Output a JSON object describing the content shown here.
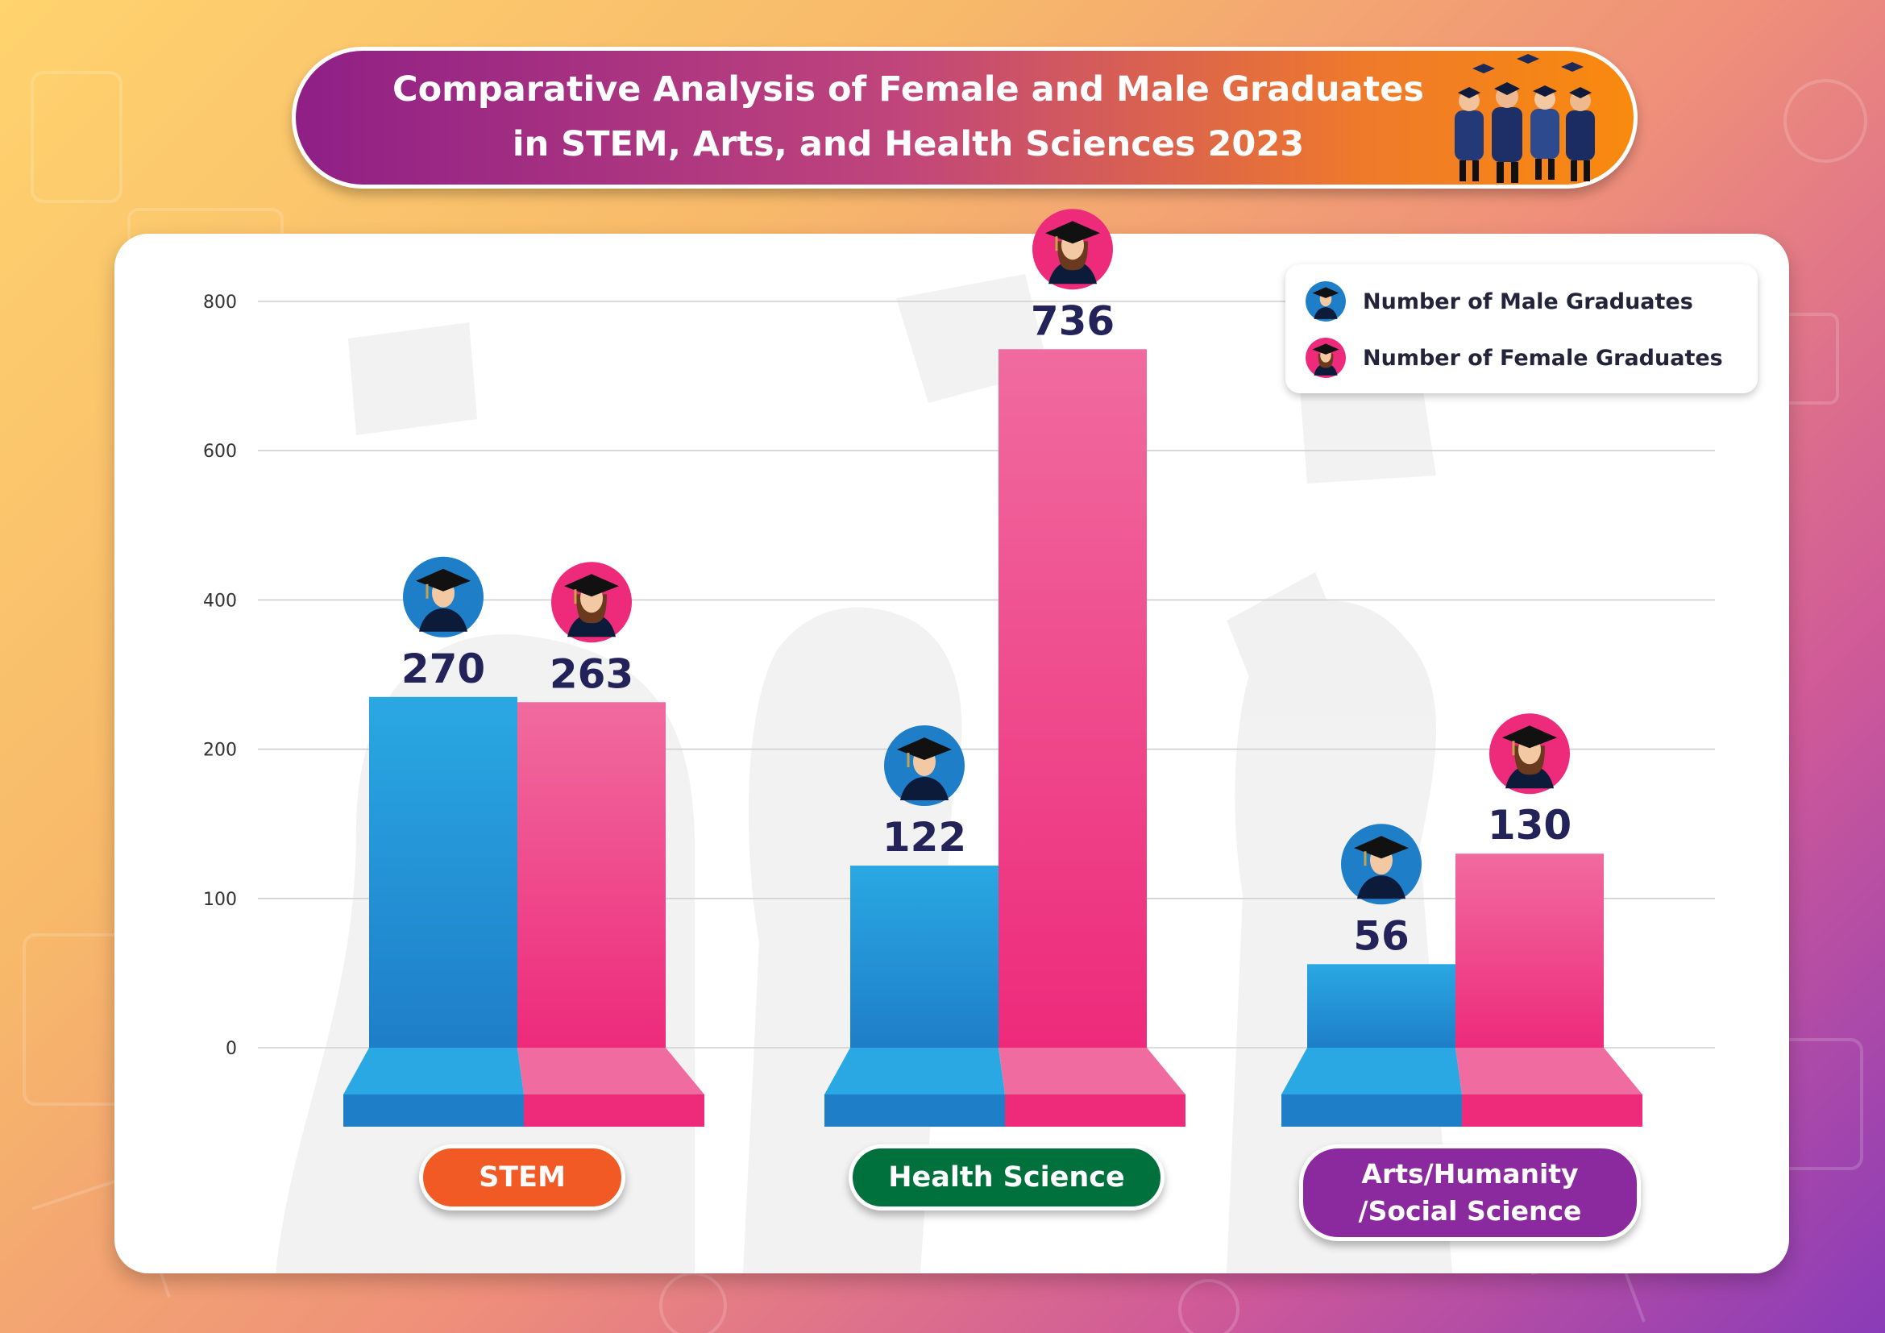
{
  "title": {
    "line1": "Comparative Analysis of Female and Male Graduates",
    "line2": "in STEM, Arts, and Health Sciences 2023"
  },
  "legend": {
    "male": "Number of Male Graduates",
    "female": "Number of Female Graduates"
  },
  "colors": {
    "male": "#1e7ec8",
    "male_light": "#2aa8e3",
    "female": "#ee2a7b",
    "female_light": "#f06b9f",
    "label": "#23235a",
    "stem_pill": "#f15a24",
    "health_pill": "#00703c",
    "arts_pill": "#8b2a9e"
  },
  "chart_data": {
    "type": "bar",
    "title": "Comparative Analysis of Female and Male Graduates in STEM, Arts, and Health Sciences 2023",
    "xlabel": "",
    "ylabel": "",
    "y_ticks": [
      0,
      100,
      200,
      400,
      600,
      800
    ],
    "categories": [
      "STEM",
      "Health Science",
      "Arts/Humanity /Social Science"
    ],
    "category_lines": [
      [
        "STEM"
      ],
      [
        "Health Science"
      ],
      [
        "Arts/Humanity",
        "/Social Science"
      ]
    ],
    "series": [
      {
        "name": "Number of Male Graduates",
        "values": [
          270,
          122,
          56
        ]
      },
      {
        "name": "Number of Female Graduates",
        "values": [
          263,
          736,
          130
        ]
      }
    ],
    "grid": true,
    "legend_position": "top-right"
  }
}
